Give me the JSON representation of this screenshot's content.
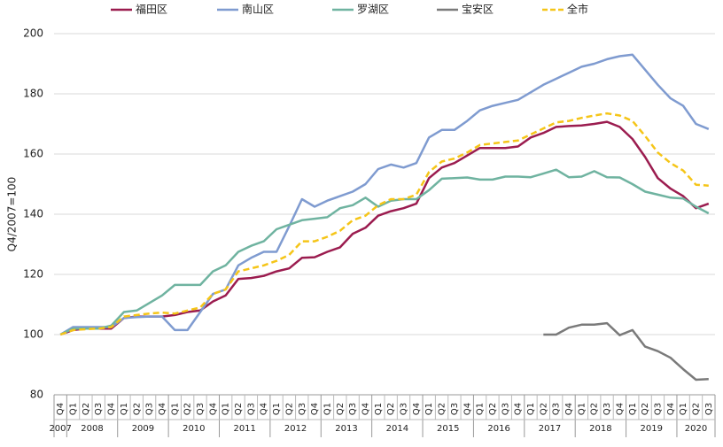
{
  "chart_data": {
    "type": "line",
    "ylabel": "Q4/2007=100",
    "categories": [
      "Q4",
      "Q1",
      "Q2",
      "Q3",
      "Q4",
      "Q1",
      "Q2",
      "Q3",
      "Q4",
      "Q1",
      "Q2",
      "Q3",
      "Q4",
      "Q1",
      "Q2",
      "Q3",
      "Q4",
      "Q1",
      "Q2",
      "Q3",
      "Q4",
      "Q1",
      "Q2",
      "Q3",
      "Q4",
      "Q1",
      "Q2",
      "Q3",
      "Q4",
      "Q1",
      "Q2",
      "Q3",
      "Q4",
      "Q1",
      "Q2",
      "Q3",
      "Q4",
      "Q1",
      "Q2",
      "Q3",
      "Q4",
      "Q1",
      "Q2",
      "Q3",
      "Q4",
      "Q1",
      "Q2",
      "Q3",
      "Q4",
      "Q1",
      "Q2",
      "Q3"
    ],
    "years": [
      "2007",
      "2008",
      "2009",
      "2010",
      "2011",
      "2012",
      "2013",
      "2014",
      "2015",
      "2016",
      "2017",
      "2018",
      "2019",
      "2020"
    ],
    "ylim": [
      80,
      200
    ],
    "yticks": [
      80,
      100,
      120,
      140,
      160,
      180,
      200
    ],
    "grid": true,
    "legend": "top",
    "series": [
      {
        "name": "福田区",
        "color": "#9b1c4f",
        "dash": false,
        "values": [
          100,
          101.5,
          102,
          102,
          102,
          105.5,
          106,
          106,
          106,
          106.5,
          107.5,
          108,
          111,
          113,
          118.5,
          118.8,
          119.5,
          121,
          122,
          125.5,
          125.7,
          127.5,
          129,
          133.5,
          135.5,
          139.5,
          141,
          142,
          143.5,
          152,
          155.5,
          157,
          159.5,
          162,
          162,
          162,
          162.5,
          165.5,
          167,
          169,
          169.3,
          169.5,
          170,
          170.7,
          169,
          165,
          159,
          152,
          148.5,
          146,
          142,
          143.5
        ]
      },
      {
        "name": "南山区",
        "color": "#7f9bd0",
        "dash": false,
        "values": [
          100,
          102.5,
          102.5,
          102.5,
          102.5,
          105.5,
          105.8,
          106,
          106,
          101.5,
          101.5,
          107.5,
          113.5,
          115,
          123,
          125.5,
          127.5,
          127.5,
          136,
          145,
          142.5,
          144.5,
          146,
          147.5,
          150,
          155,
          156.5,
          155.5,
          157,
          165.5,
          168,
          168,
          171,
          174.5,
          176,
          177,
          178,
          180.5,
          183,
          185,
          187,
          189,
          190,
          191.5,
          192.5,
          193,
          188,
          183,
          178.5,
          176,
          170,
          168.3
        ]
      },
      {
        "name": "罗湖区",
        "color": "#6fb3a0",
        "dash": false,
        "values": [
          100,
          102,
          102,
          102,
          103,
          107.5,
          108,
          110.5,
          113,
          116.5,
          116.5,
          116.5,
          121,
          123,
          127.5,
          129.5,
          131,
          135,
          136.5,
          138,
          138.5,
          139,
          142,
          143,
          145.5,
          142.5,
          144.5,
          145,
          145,
          148,
          151.8,
          152,
          152.2,
          151.5,
          151.5,
          152.5,
          152.5,
          152.3,
          153.5,
          154.8,
          152.3,
          152.5,
          154.3,
          152.3,
          152.2,
          150,
          147.5,
          146.5,
          145.5,
          145.2,
          142.5,
          140.3
        ]
      },
      {
        "name": "宝安区",
        "color": "#7a7a7a",
        "dash": false,
        "values": [
          null,
          null,
          null,
          null,
          null,
          null,
          null,
          null,
          null,
          null,
          null,
          null,
          null,
          null,
          null,
          null,
          null,
          null,
          null,
          null,
          null,
          null,
          null,
          null,
          null,
          null,
          null,
          null,
          null,
          null,
          null,
          null,
          null,
          null,
          null,
          null,
          null,
          null,
          100,
          100,
          102.3,
          103.3,
          103.3,
          103.8,
          99.8,
          101.5,
          96,
          94.5,
          92.3,
          88.5,
          85,
          85.2
        ]
      },
      {
        "name": "全市",
        "color": "#f5c518",
        "dash": true,
        "values": [
          100,
          101.5,
          101.8,
          102,
          102.5,
          106,
          106.5,
          107,
          107.3,
          107,
          108,
          109,
          113.5,
          115,
          121,
          122,
          123,
          124.5,
          126.5,
          131,
          131,
          132.5,
          134.5,
          138,
          139.5,
          143,
          145,
          145,
          146.5,
          154,
          157.5,
          158.5,
          160.5,
          163,
          163.5,
          164,
          164.5,
          166.5,
          168.5,
          170.5,
          171,
          172,
          172.8,
          173.5,
          172.8,
          171,
          166,
          160.5,
          157,
          154.5,
          149.8,
          149.5
        ]
      }
    ]
  }
}
